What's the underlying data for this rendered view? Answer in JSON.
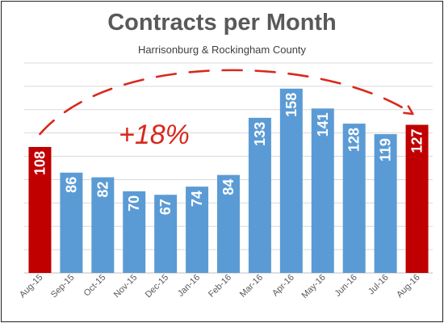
{
  "chart_data": {
    "type": "bar",
    "title": "Contracts per Month",
    "subtitle": "Harrisonburg & Rockingham County",
    "categories": [
      "Aug-15",
      "Sep-15",
      "Oct-15",
      "Nov-15",
      "Dec-15",
      "Jan-16",
      "Feb-16",
      "Mar-16",
      "Apr-16",
      "May-16",
      "Jun-16",
      "Jul-16",
      "Aug-16"
    ],
    "values": [
      108,
      86,
      82,
      70,
      67,
      74,
      84,
      133,
      158,
      141,
      128,
      119,
      127
    ],
    "highlighted_categories": [
      "Aug-15",
      "Aug-16"
    ],
    "colors": {
      "bar": "#5B9BD5",
      "highlight": "#C00000",
      "label": "#ffffff",
      "annotation": "#D9281C",
      "grid": "#D9D9D9"
    },
    "ylim": [
      0,
      180
    ],
    "grid": true,
    "annotation": {
      "text": "+18%",
      "from": "Aug-15",
      "to": "Aug-16"
    }
  }
}
